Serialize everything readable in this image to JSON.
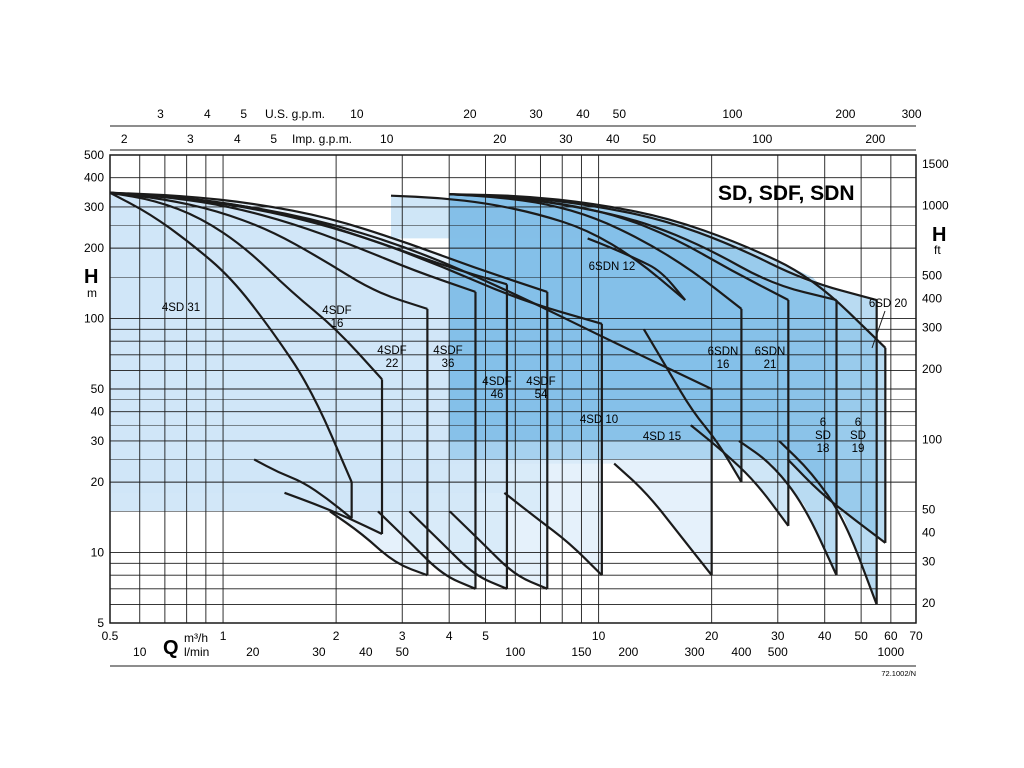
{
  "chart_data": {
    "type": "area",
    "title": "SD, SDF, SDN",
    "code": "72.1002/N",
    "yscale": "log",
    "xscale": "log",
    "grid": true,
    "x_units": {
      "symbol": "Q",
      "m3h": "m³/h",
      "lmin": "l/min"
    },
    "y_units": {
      "symbol": "H",
      "left": "m",
      "right": "ft"
    },
    "top_scales": {
      "usgpm": "U.S. g.p.m.",
      "impgpm": "Imp. g.p.m."
    },
    "xlim_m3h": [
      0.5,
      70
    ],
    "ylim_m": [
      5,
      500
    ],
    "x_ticks_m3h": [
      "0.5",
      "1",
      "2",
      "3",
      "4",
      "5",
      "10",
      "20",
      "30",
      "40",
      "50",
      "60",
      "70"
    ],
    "x_ticks_lmin": [
      "10",
      "20",
      "30",
      "40",
      "50",
      "100",
      "150",
      "200",
      "300",
      "400",
      "500",
      "1000"
    ],
    "x_ticks_usgpm": [
      "3",
      "4",
      "5",
      "10",
      "20",
      "30",
      "40",
      "50",
      "100",
      "200",
      "300"
    ],
    "x_ticks_impgpm": [
      "2",
      "3",
      "4",
      "5",
      "10",
      "20",
      "30",
      "40",
      "50",
      "100",
      "200"
    ],
    "y_ticks_m": [
      "5",
      "10",
      "20",
      "30",
      "40",
      "50",
      "100",
      "200",
      "300",
      "400",
      "500"
    ],
    "y_ticks_ft": [
      "20",
      "30",
      "40",
      "50",
      "100",
      "200",
      "300",
      "400",
      "500",
      "1000",
      "1500"
    ],
    "series": [
      {
        "name": "4SD 31",
        "label_lines": [
          "4SD 31"
        ],
        "family": "4SD",
        "q": [
          0.5,
          2.2
        ],
        "h_max": [
          345,
          280,
          210,
          150,
          90,
          50,
          20
        ],
        "h_min": [
          25,
          22,
          20,
          17,
          14
        ]
      },
      {
        "name": "4SDF 16",
        "label_lines": [
          "4SDF",
          "16"
        ],
        "family": "4SDF",
        "q": [
          0.5,
          2.65
        ],
        "h_max": [
          345,
          320,
          270,
          200,
          130,
          90,
          55
        ],
        "h_min": [
          18,
          16,
          14,
          12
        ]
      },
      {
        "name": "4SDF 22",
        "label_lines": [
          "4SDF",
          "22"
        ],
        "family": "4SDF",
        "q": [
          0.5,
          3.5
        ],
        "h_max": [
          345,
          325,
          290,
          240,
          180,
          130,
          110
        ],
        "h_min": [
          15,
          12,
          9,
          8
        ]
      },
      {
        "name": "4SDF 36",
        "label_lines": [
          "4SDF",
          "36"
        ],
        "family": "4SDF",
        "q": [
          0.5,
          4.7
        ],
        "h_max": [
          345,
          330,
          300,
          255,
          205,
          160,
          130
        ],
        "h_min": [
          15,
          11,
          8,
          7
        ]
      },
      {
        "name": "4SDF 46",
        "label_lines": [
          "4SDF",
          "46"
        ],
        "family": "4SDF",
        "q": [
          0.5,
          5.7
        ],
        "h_max": [
          345,
          332,
          305,
          265,
          215,
          170,
          140
        ],
        "h_min": [
          15,
          11,
          8,
          7
        ]
      },
      {
        "name": "4SDF 54",
        "label_lines": [
          "4SDF",
          "54"
        ],
        "family": "4SDF",
        "q": [
          0.5,
          7.3
        ],
        "h_max": [
          345,
          335,
          310,
          270,
          215,
          165,
          130
        ],
        "h_min": [
          15,
          11,
          8,
          7
        ]
      },
      {
        "name": "4SD 10",
        "label_lines": [
          "4SD 10"
        ],
        "family": "4SD",
        "q": [
          0.5,
          10.2
        ],
        "h_max": [
          345,
          325,
          285,
          230,
          170,
          120,
          95
        ],
        "h_min": [
          18,
          14,
          11,
          8
        ]
      },
      {
        "name": "4SD 15",
        "label_lines": [
          "4SD 15"
        ],
        "family": "4SD",
        "q": [
          0.5,
          20
        ],
        "h_max": [
          345,
          320,
          270,
          200,
          130,
          80,
          50
        ],
        "h_min": [
          24,
          18,
          12,
          8
        ]
      },
      {
        "name": "6SDN 12",
        "label_lines": [
          "6SDN 12"
        ],
        "family": "6SDN",
        "q": [
          2.8,
          17
        ],
        "h_max": [
          335,
          328,
          310,
          280,
          240,
          180,
          120
        ],
        "h_min": [
          220,
          200,
          180,
          160,
          120
        ]
      },
      {
        "name": "6SDN 16",
        "label_lines": [
          "6SDN",
          "16"
        ],
        "family": "6SDN",
        "q": [
          4,
          24
        ],
        "h_max": [
          340,
          330,
          310,
          270,
          215,
          160,
          110
        ],
        "h_min": [
          90,
          60,
          40,
          30,
          20
        ]
      },
      {
        "name": "6SDN 21",
        "label_lines": [
          "6SDN",
          "21"
        ],
        "family": "6SDN",
        "q": [
          4,
          32
        ],
        "h_max": [
          340,
          330,
          310,
          275,
          220,
          160,
          120
        ],
        "h_min": [
          35,
          27,
          20,
          13
        ]
      },
      {
        "name": "6 SD 18",
        "label_lines": [
          "6",
          "SD",
          "18"
        ],
        "family": "6SD",
        "q": [
          4,
          43
        ],
        "h_max": [
          340,
          330,
          300,
          260,
          200,
          140,
          120
        ],
        "h_min": [
          30,
          24,
          16,
          8
        ]
      },
      {
        "name": "6 SD 19",
        "label_lines": [
          "6",
          "SD",
          "19"
        ],
        "family": "6SD",
        "q": [
          4,
          55
        ],
        "h_max": [
          340,
          332,
          305,
          265,
          205,
          145,
          120
        ],
        "h_min": [
          30,
          22,
          14,
          6
        ]
      },
      {
        "name": "6SD 20",
        "label_lines": [
          "6SD 20"
        ],
        "family": "6SD",
        "q": [
          4,
          58
        ],
        "h_max": [
          340,
          335,
          310,
          270,
          210,
          150,
          75
        ],
        "h_min": [
          25,
          18,
          14,
          11
        ]
      }
    ],
    "colors": {
      "light_fill": "#cfe6f8",
      "mid_fill": "#a8d2f0",
      "dark_fill": "#7fbde8",
      "curve": "#1b1b1b",
      "grid": "#1b1b1b"
    }
  }
}
